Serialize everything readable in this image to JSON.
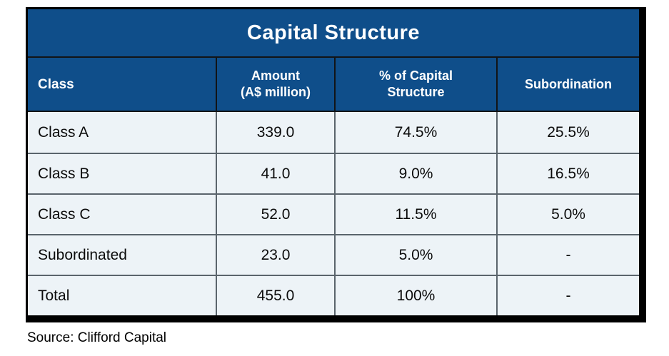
{
  "title": "Capital Structure",
  "columns": [
    {
      "label": "Class",
      "sublabel": ""
    },
    {
      "label": "Amount",
      "sublabel": "(A$ million)"
    },
    {
      "label": "% of Capital",
      "sublabel": "Structure"
    },
    {
      "label": "Subordination",
      "sublabel": ""
    }
  ],
  "rows": [
    {
      "class": "Class A",
      "amount": "339.0",
      "pct": "74.5%",
      "subordination": "25.5%"
    },
    {
      "class": "Class B",
      "amount": "41.0",
      "pct": "9.0%",
      "subordination": "16.5%"
    },
    {
      "class": "Class C",
      "amount": "52.0",
      "pct": "11.5%",
      "subordination": "5.0%"
    },
    {
      "class": "Subordinated",
      "amount": "23.0",
      "pct": "5.0%",
      "subordination": "-"
    },
    {
      "class": "Total",
      "amount": "455.0",
      "pct": "100%",
      "subordination": "-"
    }
  ],
  "source": "Source: Clifford Capital",
  "colors": {
    "header_bg": "#0F4E8A",
    "row_bg": "#EDF3F7",
    "grid": "#5A646C",
    "dark_line": "#121416",
    "frame": "#000000",
    "header_text": "#FFFFFF",
    "body_text": "#0B0B0B"
  },
  "chart_data": {
    "type": "table",
    "title": "Capital Structure",
    "columns": [
      "Class",
      "Amount (A$ million)",
      "% of Capital Structure",
      "Subordination"
    ],
    "rows": [
      [
        "Class A",
        339.0,
        "74.5%",
        "25.5%"
      ],
      [
        "Class B",
        41.0,
        "9.0%",
        "16.5%"
      ],
      [
        "Class C",
        52.0,
        "11.5%",
        "5.0%"
      ],
      [
        "Subordinated",
        23.0,
        "5.0%",
        "-"
      ],
      [
        "Total",
        455.0,
        "100%",
        "-"
      ]
    ],
    "source": "Source: Clifford Capital"
  }
}
